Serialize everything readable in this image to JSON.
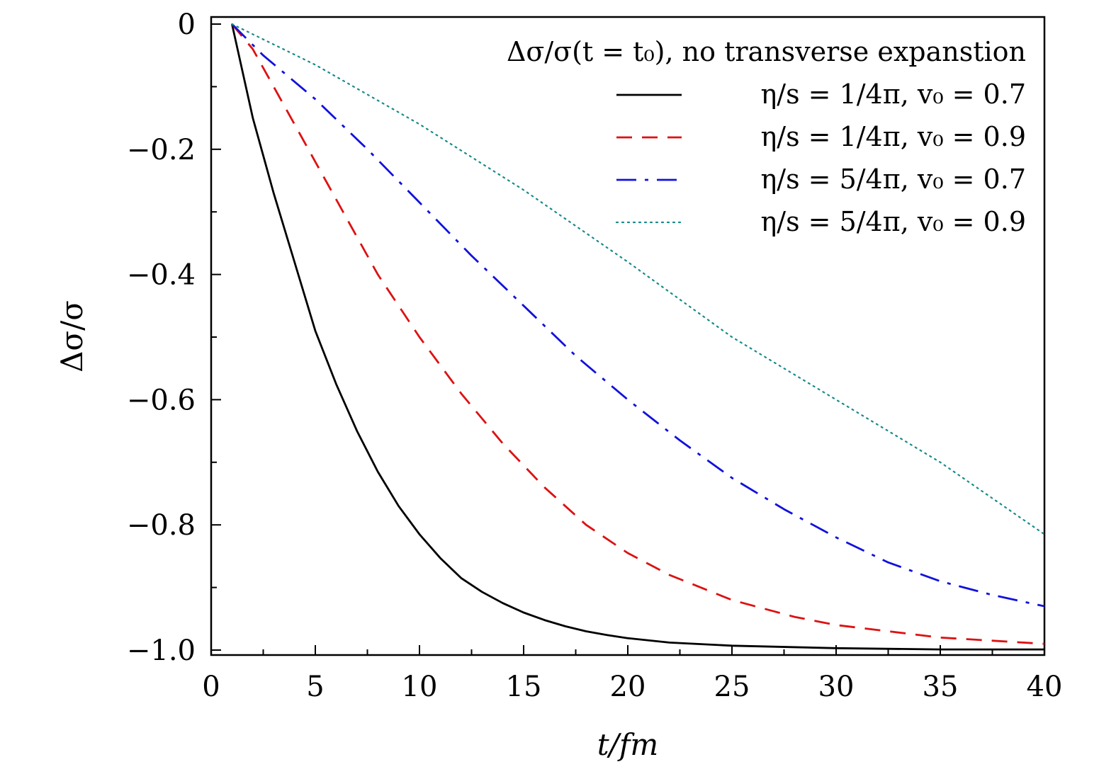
{
  "chart_data": {
    "type": "line",
    "title": "",
    "xlabel": "t/fm",
    "ylabel": "Δσ/σ",
    "xlim": [
      0,
      40
    ],
    "ylim": [
      -1.0,
      0
    ],
    "xticks": [
      0,
      5,
      10,
      15,
      20,
      25,
      30,
      35,
      40
    ],
    "xtick_labels": [
      "0",
      "5",
      "10",
      "15",
      "20",
      "25",
      "30",
      "35",
      "40"
    ],
    "yticks": [
      0,
      -0.2,
      -0.4,
      -0.6,
      -0.8,
      -1.0
    ],
    "ytick_labels": [
      "0",
      "−0.2",
      "−0.4",
      "−0.6",
      "−0.8",
      "−1.0"
    ],
    "grid": false,
    "legend_title": "Δσ/σ(t = t₀), no transverse expanstion",
    "legend_position": "top-right",
    "series": [
      {
        "name": "η/s = 1/4π, v₀ = 0.7",
        "color": "#000000",
        "dash": "solid",
        "x": [
          1,
          2,
          3,
          4,
          5,
          6,
          7,
          8,
          9,
          10,
          11,
          12,
          13,
          14,
          15,
          16,
          17,
          18,
          19,
          20,
          22,
          25,
          30,
          35,
          40
        ],
        "y": [
          0,
          -0.15,
          -0.27,
          -0.38,
          -0.49,
          -0.575,
          -0.65,
          -0.715,
          -0.77,
          -0.815,
          -0.853,
          -0.885,
          -0.907,
          -0.925,
          -0.94,
          -0.952,
          -0.962,
          -0.97,
          -0.976,
          -0.981,
          -0.988,
          -0.993,
          -0.997,
          -0.999,
          -0.999
        ]
      },
      {
        "name": "η/s = 1/4π, v₀ = 0.9",
        "color": "#dd1111",
        "dash": "dashed",
        "x": [
          1,
          2,
          3,
          4,
          5,
          6,
          7,
          8,
          9,
          10,
          12,
          14,
          16,
          18,
          20,
          22,
          25,
          28,
          30,
          35,
          40
        ],
        "y": [
          0,
          -0.04,
          -0.1,
          -0.16,
          -0.22,
          -0.28,
          -0.34,
          -0.4,
          -0.45,
          -0.5,
          -0.59,
          -0.67,
          -0.74,
          -0.8,
          -0.845,
          -0.88,
          -0.92,
          -0.947,
          -0.96,
          -0.98,
          -0.99
        ]
      },
      {
        "name": "η/s = 5/4π, v₀ = 0.7",
        "color": "#1111dd",
        "dash": "dashdot",
        "x": [
          1,
          2.5,
          5,
          7.5,
          10,
          12.5,
          15,
          17.5,
          20,
          22.5,
          25,
          27.5,
          30,
          32.5,
          35,
          37.5,
          40
        ],
        "y": [
          0,
          -0.05,
          -0.12,
          -0.2,
          -0.285,
          -0.37,
          -0.45,
          -0.53,
          -0.6,
          -0.665,
          -0.725,
          -0.775,
          -0.82,
          -0.86,
          -0.89,
          -0.912,
          -0.93
        ]
      },
      {
        "name": "η/s = 5/4π, v₀ = 0.9",
        "color": "#1a8a8a",
        "dash": "dotted",
        "x": [
          1,
          5,
          10,
          15,
          20,
          25,
          30,
          35,
          40
        ],
        "y": [
          0,
          -0.065,
          -0.16,
          -0.265,
          -0.38,
          -0.5,
          -0.6,
          -0.7,
          -0.815
        ]
      }
    ]
  }
}
